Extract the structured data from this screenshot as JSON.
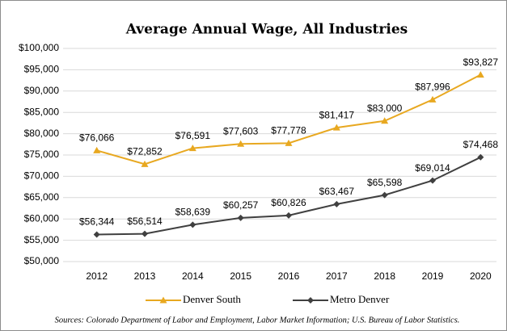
{
  "chart_data": {
    "type": "line",
    "title": "Average Annual Wage, All Industries",
    "categories": [
      "2012",
      "2013",
      "2014",
      "2015",
      "2016",
      "2017",
      "2018",
      "2019",
      "2020"
    ],
    "series": [
      {
        "name": "Denver South",
        "color": "#e8a820",
        "marker": "triangle",
        "values": [
          76066,
          72852,
          76591,
          77603,
          77778,
          81417,
          83000,
          87996,
          93827
        ],
        "value_labels": [
          "$76,066",
          "$72,852",
          "$76,591",
          "$77,603",
          "$77,778",
          "$81,417",
          "$83,000",
          "$87,996",
          "$93,827"
        ]
      },
      {
        "name": "Metro Denver",
        "color": "#404040",
        "marker": "diamond",
        "values": [
          56344,
          56514,
          58639,
          60257,
          60826,
          63467,
          65598,
          69014,
          74468
        ],
        "value_labels": [
          "$56,344",
          "$56,514",
          "$58,639",
          "$60,257",
          "$60,826",
          "$63,467",
          "$65,598",
          "$69,014",
          "$74,468"
        ]
      }
    ],
    "ylim": [
      50000,
      100000
    ],
    "yticks": [
      {
        "value": 50000,
        "label": "$50,000"
      },
      {
        "value": 55000,
        "label": "$55,000"
      },
      {
        "value": 60000,
        "label": "$60,000"
      },
      {
        "value": 65000,
        "label": "$65,000"
      },
      {
        "value": 70000,
        "label": "$70,000"
      },
      {
        "value": 75000,
        "label": "$75,000"
      },
      {
        "value": 80000,
        "label": "$80,000"
      },
      {
        "value": 85000,
        "label": "$85,000"
      },
      {
        "value": 90000,
        "label": "$90,000"
      },
      {
        "value": 95000,
        "label": "$95,000"
      },
      {
        "value": 100000,
        "label": "$100,000"
      }
    ],
    "grid": true,
    "legend": "bottom",
    "source": "Sources: Colorado Department of Labor and Employment, Labor Market Information; U.S. Bureau of Labor Statistics."
  }
}
